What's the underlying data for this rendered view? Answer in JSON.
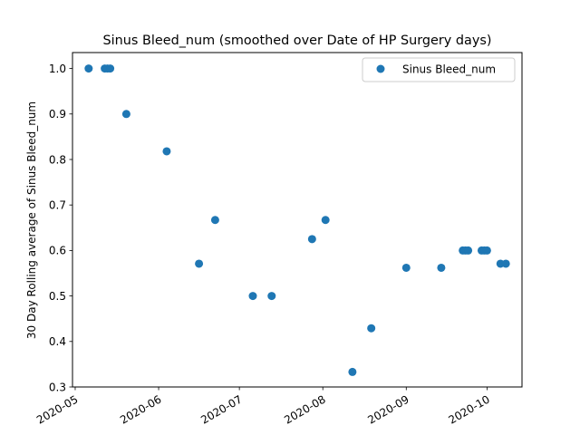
{
  "chart_data": {
    "type": "scatter",
    "title": "Sinus Bleed_num (smoothed over Date of HP Surgery days)",
    "xlabel": "",
    "ylabel": "30 Day Rolling average of Sinus Bleed_num",
    "x_ticks": [
      "2020-05",
      "2020-06",
      "2020-07",
      "2020-08",
      "2020-09",
      "2020-10"
    ],
    "y_ticks": [
      "0.3",
      "0.4",
      "0.5",
      "0.6",
      "0.7",
      "0.8",
      "0.9",
      "1.0"
    ],
    "xlim": [
      "2020-04-30",
      "2020-10-14"
    ],
    "ylim": [
      0.3,
      1.035
    ],
    "grid": false,
    "legend_position": "upper right",
    "series": [
      {
        "name": "Sinus Bleed_num",
        "color": "#1f77b4",
        "points": [
          {
            "x": "2020-05-06",
            "y": 1.0
          },
          {
            "x": "2020-05-12",
            "y": 1.0
          },
          {
            "x": "2020-05-13",
            "y": 1.0
          },
          {
            "x": "2020-05-14",
            "y": 1.0
          },
          {
            "x": "2020-05-20",
            "y": 0.9
          },
          {
            "x": "2020-06-04",
            "y": 0.818
          },
          {
            "x": "2020-06-16",
            "y": 0.571
          },
          {
            "x": "2020-06-22",
            "y": 0.667
          },
          {
            "x": "2020-07-06",
            "y": 0.5
          },
          {
            "x": "2020-07-13",
            "y": 0.5
          },
          {
            "x": "2020-07-28",
            "y": 0.625
          },
          {
            "x": "2020-08-02",
            "y": 0.667
          },
          {
            "x": "2020-08-12",
            "y": 0.333
          },
          {
            "x": "2020-08-19",
            "y": 0.429
          },
          {
            "x": "2020-09-01",
            "y": 0.562
          },
          {
            "x": "2020-09-14",
            "y": 0.562
          },
          {
            "x": "2020-09-22",
            "y": 0.6
          },
          {
            "x": "2020-09-23",
            "y": 0.6
          },
          {
            "x": "2020-09-24",
            "y": 0.6
          },
          {
            "x": "2020-09-29",
            "y": 0.6
          },
          {
            "x": "2020-09-30",
            "y": 0.6
          },
          {
            "x": "2020-10-01",
            "y": 0.6
          },
          {
            "x": "2020-10-06",
            "y": 0.571
          },
          {
            "x": "2020-10-08",
            "y": 0.571
          }
        ]
      }
    ]
  }
}
